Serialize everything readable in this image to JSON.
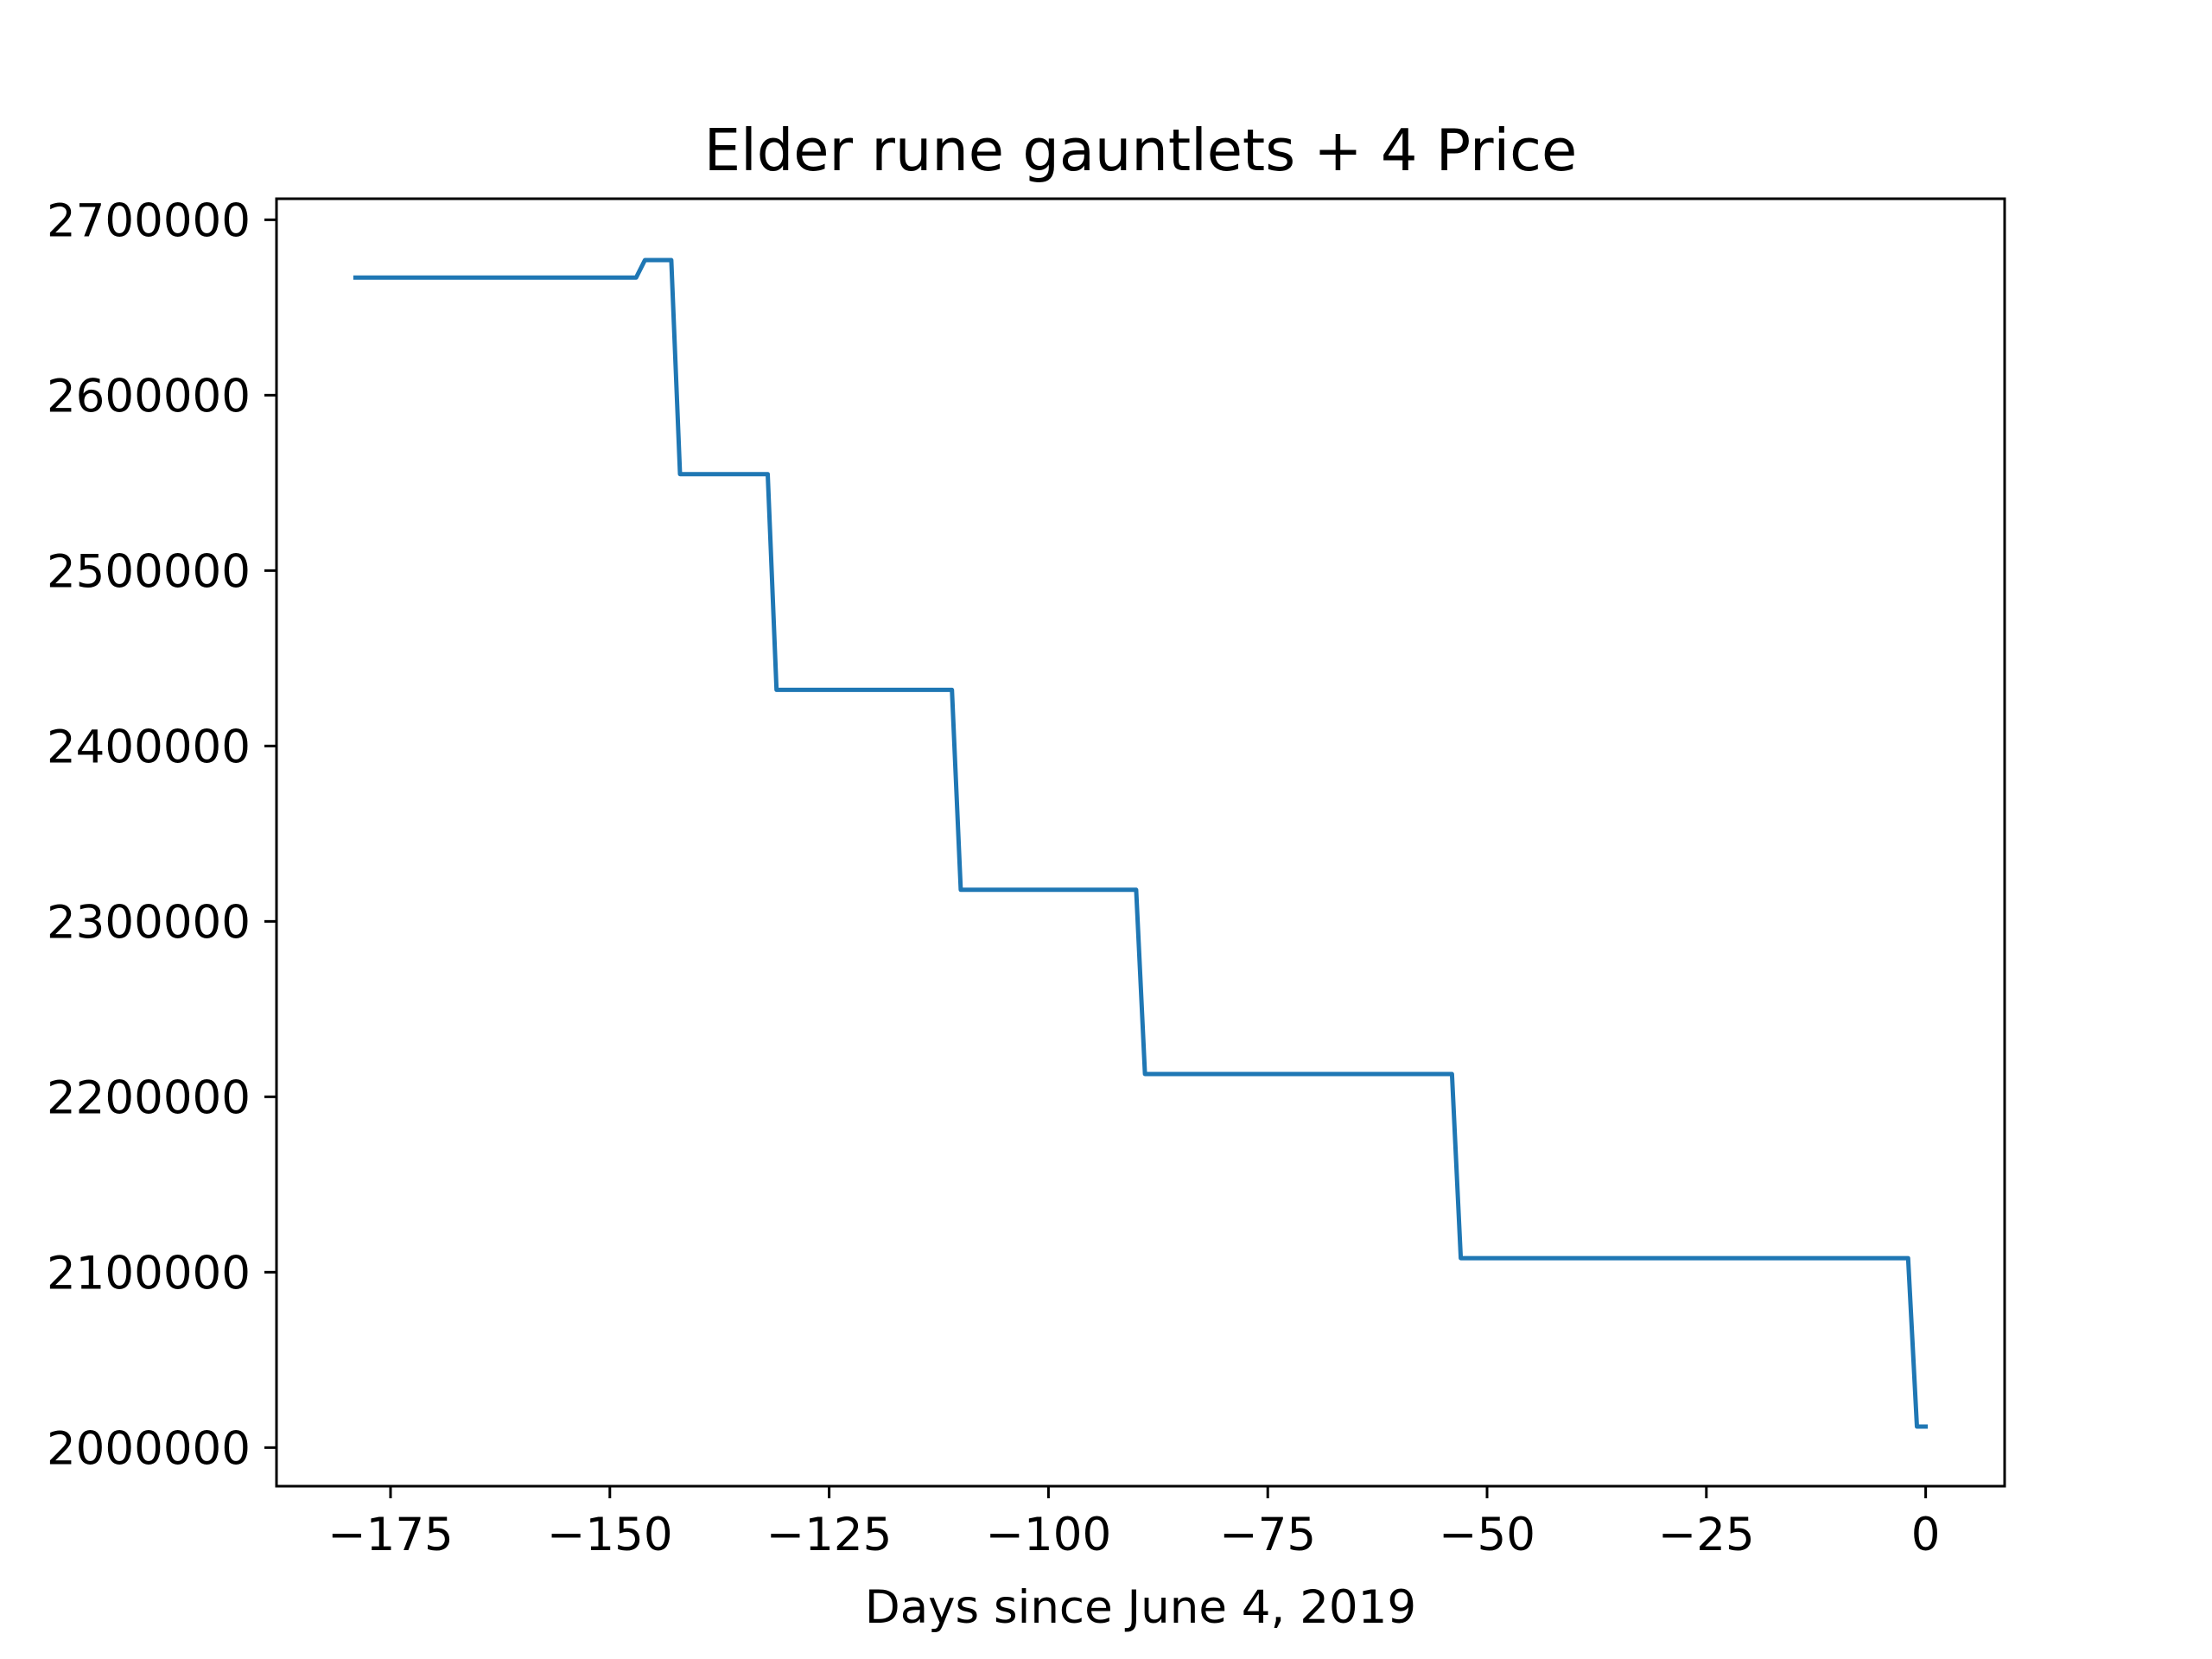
{
  "chart_data": {
    "type": "line",
    "title": "Elder rune gauntlets + 4 Price",
    "xlabel": "Days since June 4, 2019",
    "ylabel": "",
    "xlim": [
      -188,
      9
    ],
    "ylim": [
      1978000,
      2712000
    ],
    "xticks": [
      -175,
      -150,
      -125,
      -100,
      -75,
      -50,
      -25,
      0
    ],
    "xtick_labels": [
      "−175",
      "−150",
      "−125",
      "−100",
      "−75",
      "−50",
      "−25",
      "0"
    ],
    "yticks": [
      2000000,
      2100000,
      2200000,
      2300000,
      2400000,
      2500000,
      2600000,
      2700000
    ],
    "ytick_labels": [
      "2000000",
      "2100000",
      "2200000",
      "2300000",
      "2400000",
      "2500000",
      "2600000",
      "2700000"
    ],
    "grid": false,
    "legend": "none",
    "series": [
      {
        "color": "#1f77b4",
        "x": [
          -179,
          -147,
          -146,
          -143,
          -142,
          -132,
          -131,
          -111,
          -110,
          -90,
          -89,
          -54,
          -53,
          -2,
          -1,
          0
        ],
        "y": [
          2667000,
          2667000,
          2677000,
          2677000,
          2555000,
          2555000,
          2432000,
          2432000,
          2318000,
          2318000,
          2213000,
          2213000,
          2108000,
          2108000,
          2012000,
          2012000
        ]
      }
    ]
  }
}
